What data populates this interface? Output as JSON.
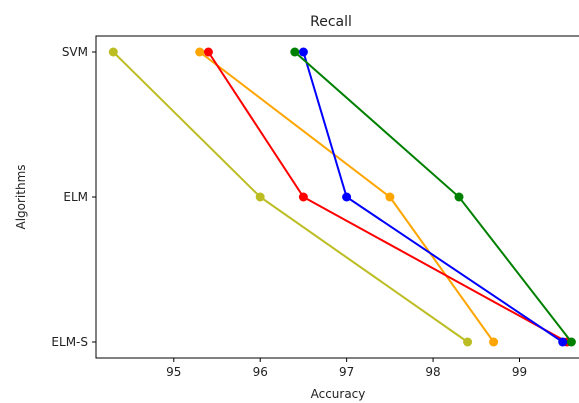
{
  "chart_data": {
    "type": "line",
    "title": "Recall",
    "xlabel": "Accuracy",
    "ylabel": "Algorithms",
    "categories": [
      "SVM",
      "ELM",
      "ELM-S"
    ],
    "xlim": [
      94.1,
      99.7
    ],
    "xticks": [
      95,
      96,
      97,
      98,
      99
    ],
    "grid": false,
    "series": [
      {
        "color": "#bcbd22",
        "points": [
          [
            94.3,
            "SVM"
          ],
          [
            96.0,
            "ELM"
          ],
          [
            98.4,
            "ELM-S"
          ]
        ]
      },
      {
        "color": "#ffa500",
        "points": [
          [
            95.3,
            "SVM"
          ],
          [
            97.5,
            "ELM"
          ],
          [
            98.7,
            "ELM-S"
          ]
        ]
      },
      {
        "color": "#ff0000",
        "points": [
          [
            95.4,
            "SVM"
          ],
          [
            96.5,
            "ELM"
          ],
          [
            99.55,
            "ELM-S"
          ]
        ]
      },
      {
        "color": "#0000ff",
        "points": [
          [
            96.5,
            "SVM"
          ],
          [
            97.0,
            "ELM"
          ],
          [
            99.5,
            "ELM-S"
          ]
        ]
      },
      {
        "color": "#008000",
        "points": [
          [
            96.4,
            "SVM"
          ],
          [
            98.3,
            "ELM"
          ],
          [
            99.6,
            "ELM-S"
          ]
        ]
      }
    ]
  }
}
